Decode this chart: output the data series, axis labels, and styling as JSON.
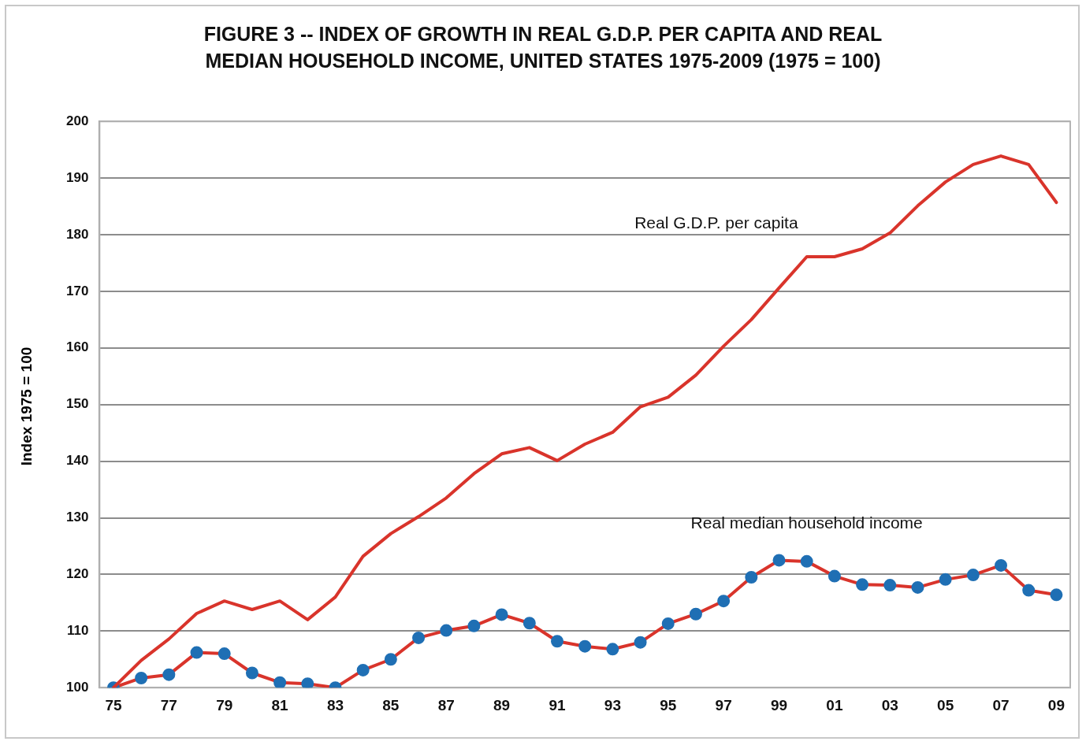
{
  "chart_data": {
    "type": "line",
    "title": "FIGURE 3 -- INDEX OF GROWTH IN REAL G.D.P. PER CAPITA AND REAL\nMEDIAN HOUSEHOLD INCOME, UNITED STATES 1975-2009 (1975 = 100)",
    "ylabel": "Index 1975 = 100",
    "categories": [
      "75",
      null,
      "77",
      null,
      "79",
      null,
      "81",
      null,
      "83",
      null,
      "85",
      null,
      "87",
      null,
      "89",
      null,
      "91",
      null,
      "93",
      null,
      "95",
      null,
      "97",
      null,
      "99",
      null,
      "01",
      null,
      "03",
      null,
      "05",
      null,
      "07",
      null,
      "09"
    ],
    "series": [
      {
        "name": "Real G.D.P. per capita",
        "color": "#d9342b",
        "marker": "none",
        "values": [
          100,
          104.8,
          108.6,
          113.1,
          115.3,
          113.8,
          115.3,
          112.0,
          116.0,
          123.2,
          127.2,
          130.2,
          133.5,
          137.8,
          141.3,
          142.4,
          140.1,
          143.0,
          145.1,
          149.6,
          151.3,
          155.2,
          160.3,
          165.0,
          170.6,
          176.1,
          176.1,
          177.5,
          180.3,
          185.1,
          189.3,
          192.4,
          193.9,
          192.4,
          185.7
        ]
      },
      {
        "name": "Real median household income",
        "color": "#d9342b",
        "marker": "circle",
        "colors": [
          "#1f6fb4",
          "#1f6fb4",
          "#1f6fb4",
          "#1f6fb4",
          "#1f6fb4",
          "#1f6fb4",
          "#1f6fb4",
          "#1f6fb4",
          "#1f6fb4",
          "#1f6fb4",
          "#1f6fb4",
          "#1f6fb4",
          "#1f6fb4",
          "#1f6fb4",
          "#1f6fb4",
          "#1f6fb4",
          "#1f6fb4",
          "#1f6fb4",
          "#1f6fb4",
          "#1f6fb4",
          "#1f6fb4",
          "#1f6fb4",
          "#1f6fb4",
          "#1f6fb4",
          "#1f6fb4",
          "#1f6fb4",
          "#1f6fb4",
          "#1f6fb4",
          "#1f6fb4",
          "#1f6fb4",
          "#1f6fb4",
          "#1f6fb4",
          "#1f6fb4",
          "#1f6fb4",
          "#1f6fb4"
        ],
        "values": [
          100,
          101.7,
          102.3,
          106.2,
          106.0,
          102.6,
          100.9,
          100.7,
          100,
          103.1,
          105.0,
          108.8,
          110.1,
          110.9,
          112.9,
          111.4,
          108.2,
          107.3,
          106.8,
          108.0,
          111.3,
          113.0,
          115.3,
          119.5,
          122.5,
          122.3,
          119.7,
          118.2,
          118.1,
          117.7,
          119.1,
          119.9,
          121.6,
          117.2,
          116.4
        ]
      }
    ],
    "ylim": [
      100,
      200
    ],
    "yticks": [
      100,
      110,
      120,
      130,
      140,
      150,
      160,
      170,
      180,
      190,
      200
    ],
    "grid": "y",
    "legend": false,
    "line_style": "solid"
  }
}
